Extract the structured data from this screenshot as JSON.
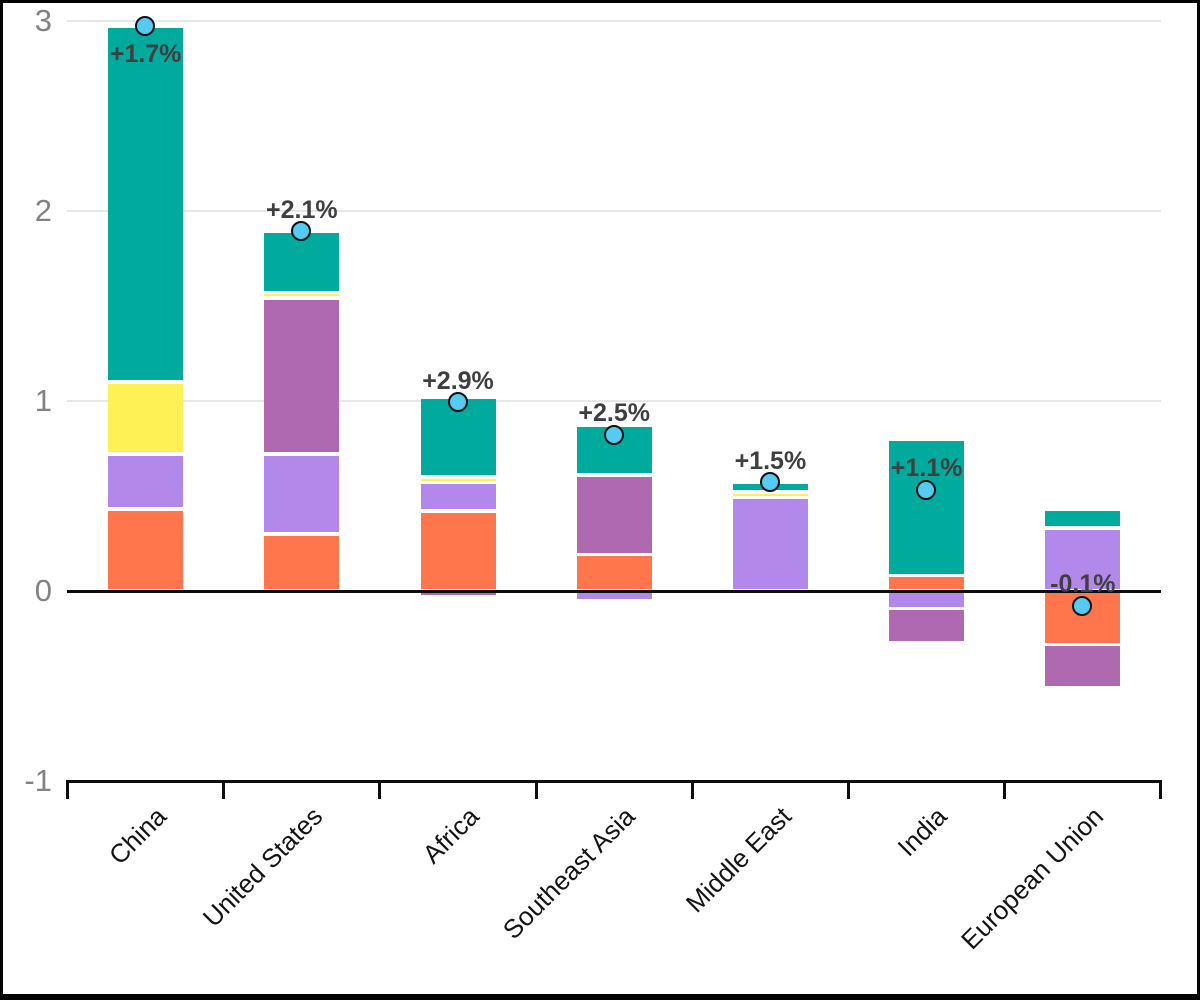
{
  "chart_data": {
    "type": "bar",
    "subtype": "stacked-bar-with-net-markers",
    "title": "",
    "xlabel": "",
    "ylabel": "",
    "legend": "none",
    "grid": true,
    "categories": [
      "China",
      "United States",
      "Africa",
      "Southeast Asia",
      "Middle East",
      "India",
      "European Union"
    ],
    "series": [
      {
        "name": "orange",
        "color": "#FF754C",
        "values": [
          0.43,
          0.3,
          0.42,
          0.19,
          0.0,
          0.08,
          -0.28
        ]
      },
      {
        "name": "lavender",
        "color": "#B289EA",
        "values": [
          0.29,
          0.42,
          0.15,
          -0.05,
          0.49,
          -0.09,
          0.33
        ]
      },
      {
        "name": "magenta",
        "color": "#AF69B0",
        "values": [
          0.0,
          0.82,
          -0.03,
          0.42,
          0.0,
          -0.18,
          -0.23
        ]
      },
      {
        "name": "yellow",
        "color": "#FDF155",
        "values": [
          0.38,
          0.03,
          0.03,
          0.0,
          0.03,
          0.0,
          0.0
        ]
      },
      {
        "name": "teal",
        "color": "#00AB9E",
        "values": [
          1.87,
          0.32,
          0.42,
          0.26,
          0.05,
          0.72,
          0.1
        ]
      }
    ],
    "net_markers": {
      "values": [
        2.97,
        1.89,
        0.99,
        0.82,
        0.57,
        0.53,
        -0.08
      ],
      "labels": [
        "+1.7%",
        "+2.1%",
        "+2.9%",
        "+2.5%",
        "+1.5%",
        "+1.1%",
        "-0.1%"
      ],
      "marker_fill": "#55CAF3",
      "marker_stroke": "#111111"
    },
    "y_axis": {
      "min": -1,
      "max": 3,
      "ticks": [
        -1,
        0,
        1,
        2,
        3
      ]
    },
    "x_axis": {
      "tick_style": "category-boundaries",
      "label_rotation_deg": -45
    }
  },
  "colors": {
    "background": "#FFFFFF",
    "border": "#000000",
    "gridline": "#E7E7E7",
    "zero_line": "#0D0D0D",
    "axis": "#0D0D0D",
    "y_tick_label": "#828282",
    "x_tick_label": "#141414",
    "annotation": "#3F3F3F"
  }
}
